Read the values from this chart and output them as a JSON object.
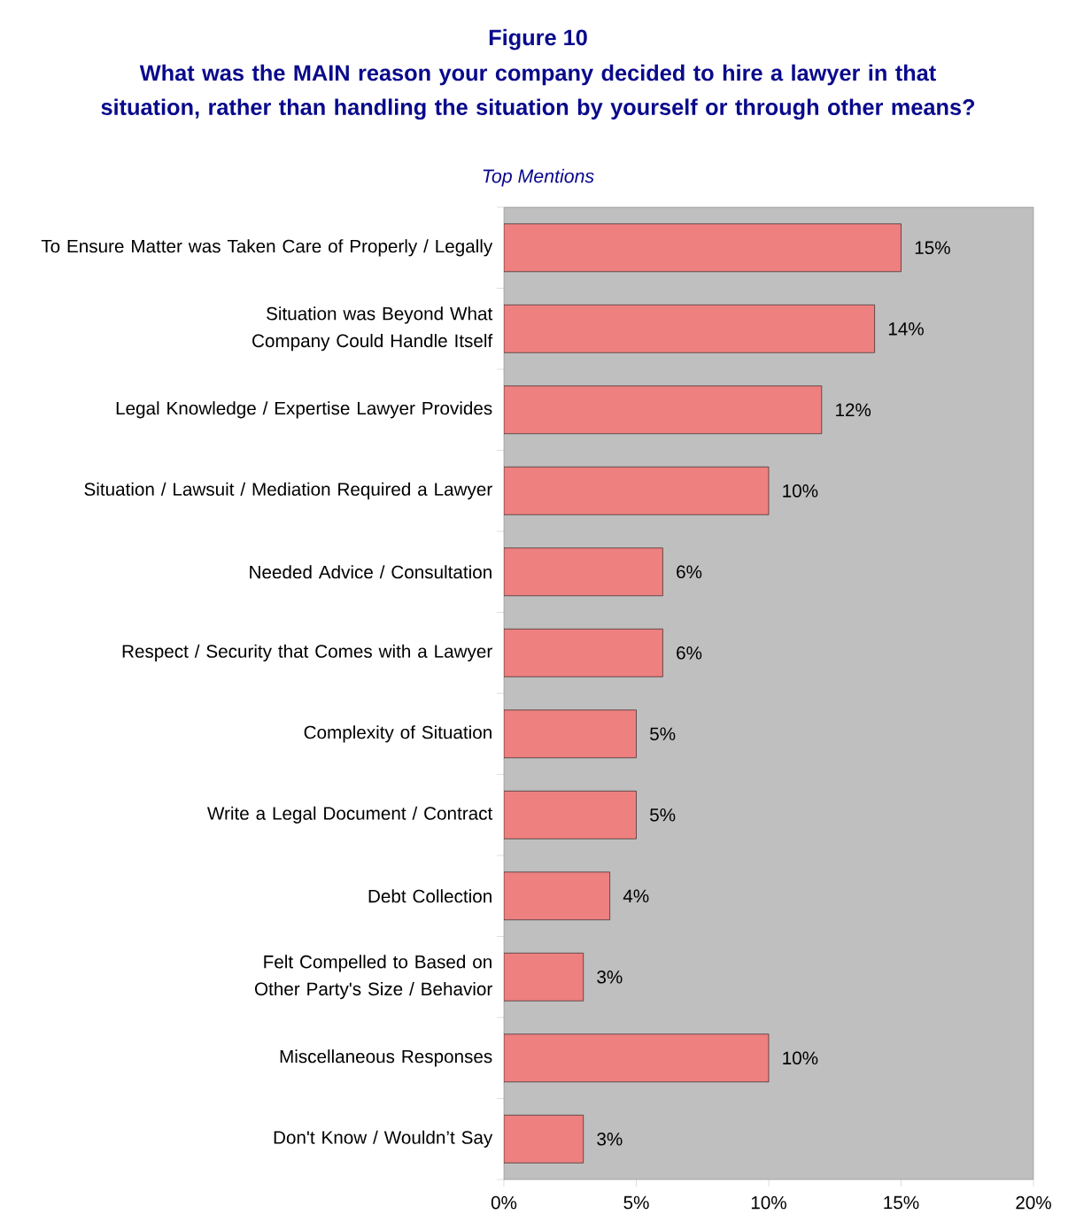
{
  "chart_data": {
    "type": "bar",
    "orientation": "horizontal",
    "title": "Figure 10",
    "subtitle": "What was the MAIN reason your company decided to hire a lawyer in that situation, rather than handling the situation by yourself or through other means?",
    "annotations": [
      "Top Mentions"
    ],
    "categories": [
      "To Ensure Matter was Taken Care of Properly / Legally",
      "Situation was Beyond What Company Could Handle Itself",
      "Legal Knowledge / Expertise Lawyer Provides",
      "Situation / Lawsuit / Mediation Required a Lawyer",
      "Needed Advice / Consultation",
      "Respect / Security that Comes with a Lawyer",
      "Complexity of Situation",
      "Write a Legal Document / Contract",
      "Debt Collection",
      "Felt Compelled to Based on Other Party's Size / Behavior",
      "Miscellaneous Responses",
      "Don't Know / Wouldn’t Say"
    ],
    "values": [
      15,
      14,
      12,
      10,
      6,
      6,
      5,
      5,
      4,
      3,
      10,
      3
    ],
    "value_labels": [
      "15%",
      "14%",
      "12%",
      "10%",
      "6%",
      "6%",
      "5%",
      "5%",
      "4%",
      "3%",
      "10%",
      "3%"
    ],
    "color": "#ee8080",
    "xlim": [
      0,
      20
    ],
    "xticks": [
      {
        "value": 0,
        "label": "0%"
      },
      {
        "value": 5,
        "label": "5%"
      },
      {
        "value": 10,
        "label": "10%"
      },
      {
        "value": 15,
        "label": "15%"
      },
      {
        "value": 20,
        "label": "20%"
      }
    ]
  }
}
